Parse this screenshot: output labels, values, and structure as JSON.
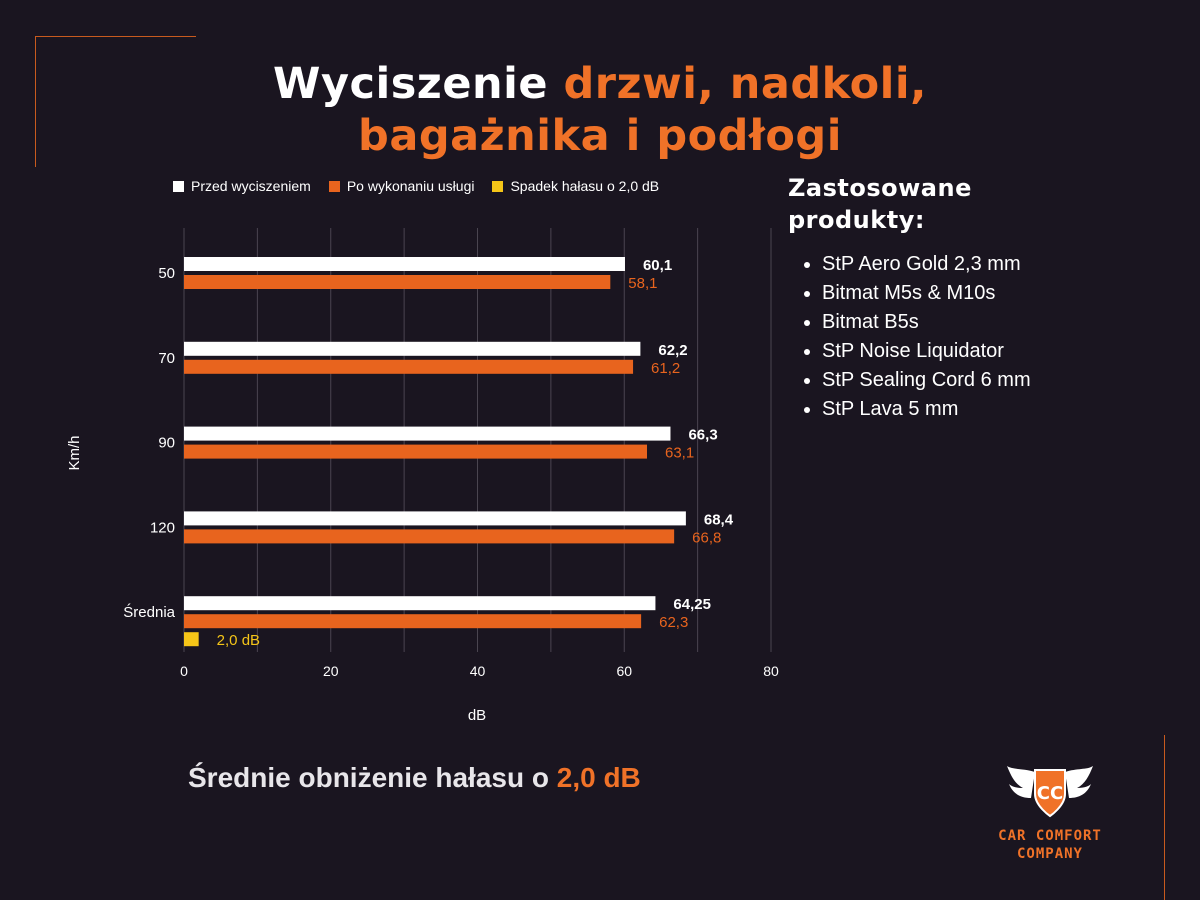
{
  "title": {
    "part1": "Wyciszenie ",
    "part2": "drzwi, nadkoli,",
    "part3": "bagażnika i podłogi"
  },
  "colors": {
    "background": "#1a1520",
    "accent": "#f07228",
    "before": "#ffffff",
    "after": "#e8641e",
    "drop": "#f5c518"
  },
  "side_panel": {
    "title_line1": "Zastosowane",
    "title_line2": "produkty:",
    "products": [
      "StP Aero Gold 2,3 mm",
      "Bitmat M5s & M10s",
      "Bitmat B5s",
      "StP Noise Liquidator",
      "StP Sealing Cord 6 mm",
      "StP Lava 5 mm"
    ]
  },
  "summary": {
    "text": "Średnie obniżenie hałasu o ",
    "value": "2,0 dB"
  },
  "logo": {
    "icon": "cc-winged-shield-logo",
    "line1": "CAR COMFORT",
    "line2": "COMPANY"
  },
  "chart_data": {
    "type": "bar",
    "orientation": "horizontal",
    "categories": [
      "50",
      "70",
      "90",
      "120",
      "Średnia"
    ],
    "series": [
      {
        "name": "Przed wyciszeniem",
        "values": [
          60.1,
          62.2,
          66.3,
          68.4,
          64.25
        ],
        "labels": [
          "60,1",
          "62,2",
          "66,3",
          "68,4",
          "64,25"
        ]
      },
      {
        "name": "Po wykonaniu usługi",
        "values": [
          58.1,
          61.2,
          63.1,
          66.8,
          62.3
        ],
        "labels": [
          "58,1",
          "61,2",
          "63,1",
          "66,8",
          "62,3"
        ]
      },
      {
        "name": "Spadek hałasu o 2,0 dB",
        "values": [
          null,
          null,
          null,
          null,
          2.0
        ],
        "labels": [
          "",
          "",
          "",
          "",
          "2,0 dB"
        ]
      }
    ],
    "xlabel": "dB",
    "ylabel": "Km/h",
    "xlim": [
      0,
      80
    ],
    "xticks": [
      0,
      20,
      40,
      60,
      80
    ],
    "grid": true,
    "legend_position": "top"
  }
}
